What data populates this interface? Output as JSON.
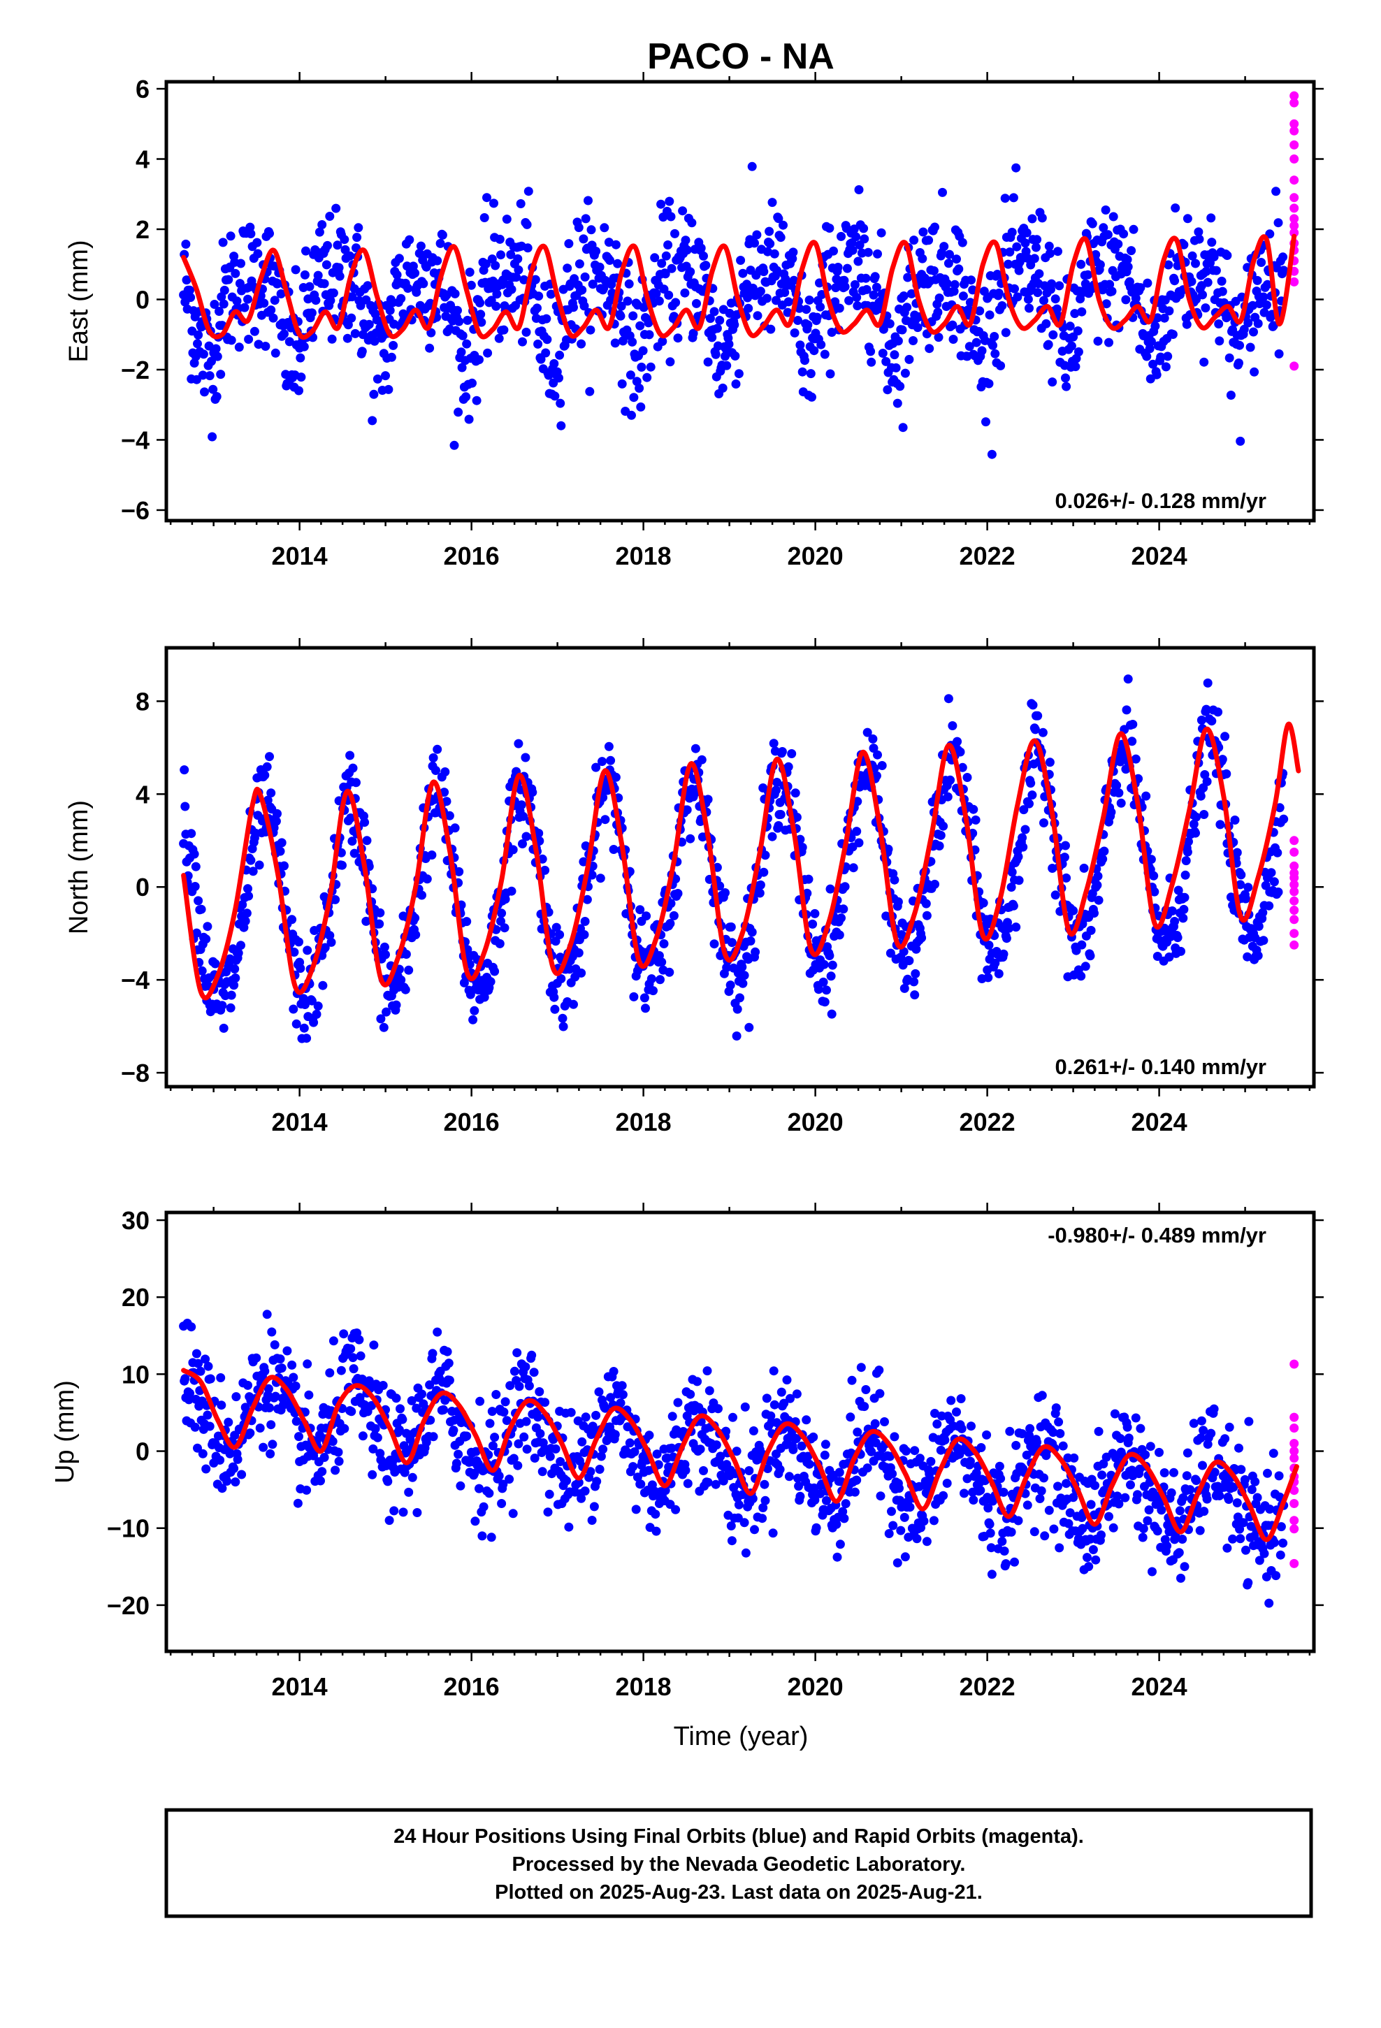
{
  "chart_data": [
    {
      "type": "scatter",
      "title": "PACO - NA",
      "ylabel": "East (mm)",
      "xlabel": "",
      "xlim": [
        2012.45,
        2025.8
      ],
      "ylim": [
        -6.3,
        6.2
      ],
      "x_ticks": [
        2014,
        2016,
        2018,
        2020,
        2022,
        2024
      ],
      "y_ticks": [
        -6,
        -4,
        -2,
        0,
        2,
        4,
        6
      ],
      "grid": false,
      "rate_label": "0.026+/- 0.128 mm/yr",
      "rate_position": "bottom-right",
      "series": [
        {
          "name": "Final Orbits",
          "color": "#0000ff",
          "kind": "points",
          "model": {
            "start": 2012.65,
            "end": 2025.45,
            "step": 0.009,
            "offset": 0.0,
            "trend": 0.026,
            "annual_sin": 0.45,
            "annual_cos": -0.95,
            "semi_sin": 0.35,
            "semi_cos": -0.2,
            "noise_sd": 0.95,
            "mean_year": 2019.0
          }
        },
        {
          "name": "Rapid Orbits",
          "color": "#ff00ff",
          "kind": "points",
          "x": [
            2025.57,
            2025.57,
            2025.57,
            2025.57,
            2025.57,
            2025.57,
            2025.57,
            2025.57,
            2025.57,
            2025.57,
            2025.57,
            2025.57,
            2025.57,
            2025.57,
            2025.57,
            2025.57,
            2025.57,
            2025.57
          ],
          "y": [
            5.8,
            5.6,
            5.0,
            4.8,
            4.4,
            4.0,
            3.4,
            2.9,
            2.6,
            2.3,
            2.1,
            1.9,
            1.6,
            1.4,
            1.1,
            0.8,
            0.5,
            -1.9
          ]
        },
        {
          "name": "Model fit",
          "color": "#ff0000",
          "kind": "line",
          "x": [
            2012.65,
            2012.8,
            2012.95,
            2013.1,
            2013.25,
            2013.4,
            2013.55,
            2013.7,
            2013.85,
            2014.0,
            2014.15,
            2014.3,
            2014.45,
            2014.6,
            2014.75,
            2014.9,
            2015.05,
            2015.2,
            2015.35,
            2015.5,
            2015.65,
            2015.8,
            2015.95,
            2016.1,
            2016.25,
            2016.4,
            2016.55,
            2016.7,
            2016.85,
            2017.0,
            2017.15,
            2017.3,
            2017.45,
            2017.6,
            2017.75,
            2017.9,
            2018.05,
            2018.2,
            2018.35,
            2018.5,
            2018.65,
            2018.8,
            2018.95,
            2019.1,
            2019.25,
            2019.4,
            2019.55,
            2019.7,
            2019.85,
            2020.0,
            2020.15,
            2020.3,
            2020.45,
            2020.6,
            2020.75,
            2020.9,
            2021.05,
            2021.2,
            2021.35,
            2021.5,
            2021.65,
            2021.8,
            2021.95,
            2022.1,
            2022.25,
            2022.4,
            2022.55,
            2022.7,
            2022.85,
            2023.0,
            2023.15,
            2023.3,
            2023.45,
            2023.6,
            2023.75,
            2023.9,
            2024.05,
            2024.2,
            2024.35,
            2024.5,
            2024.65,
            2024.8,
            2024.95,
            2025.1,
            2025.25,
            2025.4,
            2025.57
          ],
          "y": [
            1.2,
            0.3,
            -0.9,
            -1.0,
            -0.35,
            -0.6,
            0.6,
            1.4,
            0.2,
            -1.0,
            -0.9,
            -0.35,
            -0.8,
            0.7,
            1.4,
            0.1,
            -1.0,
            -0.85,
            -0.3,
            -0.8,
            0.7,
            1.5,
            0.2,
            -1.0,
            -0.85,
            -0.35,
            -0.8,
            0.8,
            1.5,
            0.1,
            -1.0,
            -0.8,
            -0.3,
            -0.8,
            0.8,
            1.5,
            0.0,
            -1.0,
            -0.8,
            -0.3,
            -0.8,
            0.8,
            1.5,
            0.0,
            -1.0,
            -0.75,
            -0.3,
            -0.7,
            0.9,
            1.6,
            0.0,
            -0.9,
            -0.7,
            -0.3,
            -0.7,
            0.9,
            1.6,
            0.0,
            -0.9,
            -0.7,
            -0.2,
            -0.7,
            1.0,
            1.6,
            0.0,
            -0.8,
            -0.6,
            -0.2,
            -0.7,
            1.0,
            1.7,
            0.0,
            -0.8,
            -0.6,
            -0.2,
            -0.6,
            1.1,
            1.7,
            0.0,
            -0.8,
            -0.5,
            -0.2,
            -0.6,
            1.1,
            1.7,
            -0.7,
            1.8
          ]
        }
      ]
    },
    {
      "type": "scatter",
      "ylabel": "North (mm)",
      "xlabel": "",
      "xlim": [
        2012.45,
        2025.8
      ],
      "ylim": [
        -8.6,
        10.3
      ],
      "x_ticks": [
        2014,
        2016,
        2018,
        2020,
        2022,
        2024
      ],
      "y_ticks": [
        -8,
        -4,
        0,
        4,
        8
      ],
      "grid": false,
      "rate_label": "0.261+/- 0.140 mm/yr",
      "rate_position": "bottom-right",
      "series": [
        {
          "name": "Final Orbits",
          "color": "#0000ff",
          "kind": "points",
          "model": {
            "start": 2012.65,
            "end": 2025.45,
            "step": 0.009,
            "offset": 0.4,
            "trend": 0.261,
            "annual_sin": -2.2,
            "annual_cos": -3.5,
            "semi_sin": 0.3,
            "semi_cos": 0.0,
            "noise_sd": 1.05,
            "mean_year": 2019.0
          }
        },
        {
          "name": "Rapid Orbits",
          "color": "#ff00ff",
          "kind": "points",
          "x": [
            2025.57,
            2025.57,
            2025.57,
            2025.57,
            2025.57,
            2025.57,
            2025.57,
            2025.57,
            2025.57,
            2025.57,
            2025.57,
            2025.57
          ],
          "y": [
            2.0,
            1.5,
            0.9,
            0.6,
            0.4,
            0.1,
            -0.2,
            -0.6,
            -1.0,
            -1.4,
            -2.0,
            -2.5
          ]
        },
        {
          "name": "Model fit",
          "color": "#ff0000",
          "kind": "line",
          "x": [
            2012.65,
            2012.85,
            2013.05,
            2013.25,
            2013.45,
            2013.55,
            2013.75,
            2013.95,
            2014.15,
            2014.35,
            2014.55,
            2014.75,
            2014.95,
            2015.15,
            2015.35,
            2015.55,
            2015.75,
            2015.95,
            2016.15,
            2016.35,
            2016.55,
            2016.75,
            2016.95,
            2017.15,
            2017.35,
            2017.55,
            2017.75,
            2017.95,
            2018.15,
            2018.35,
            2018.55,
            2018.75,
            2018.95,
            2019.15,
            2019.35,
            2019.55,
            2019.75,
            2019.95,
            2020.15,
            2020.35,
            2020.55,
            2020.75,
            2020.95,
            2021.15,
            2021.35,
            2021.55,
            2021.75,
            2021.95,
            2022.15,
            2022.35,
            2022.55,
            2022.75,
            2022.95,
            2023.15,
            2023.35,
            2023.55,
            2023.75,
            2023.95,
            2024.15,
            2024.35,
            2024.55,
            2024.75,
            2024.95,
            2025.15,
            2025.35,
            2025.5,
            2025.62
          ],
          "y": [
            0.5,
            -4.5,
            -3.8,
            -1.0,
            3.5,
            3.9,
            0.5,
            -4.3,
            -3.5,
            -0.5,
            4.1,
            1.0,
            -4.0,
            -3.0,
            0.0,
            4.5,
            1.5,
            -3.7,
            -2.8,
            0.3,
            4.8,
            1.6,
            -3.5,
            -2.5,
            0.8,
            5.0,
            1.8,
            -3.2,
            -2.2,
            1.0,
            5.3,
            2.2,
            -2.9,
            -2.0,
            1.4,
            5.5,
            2.4,
            -2.7,
            -1.6,
            1.8,
            5.8,
            2.6,
            -2.4,
            -1.2,
            2.2,
            6.1,
            3.0,
            -2.1,
            -0.5,
            3.5,
            6.3,
            3.3,
            -1.9,
            -0.2,
            3.0,
            6.6,
            3.6,
            -1.6,
            0.1,
            3.3,
            6.8,
            3.9,
            -1.3,
            0.4,
            3.6,
            7.0,
            5.0
          ]
        }
      ]
    },
    {
      "type": "scatter",
      "ylabel": "Up (mm)",
      "xlabel": "Time (year)",
      "xlim": [
        2012.45,
        2025.8
      ],
      "ylim": [
        -26.0,
        31.0
      ],
      "x_ticks": [
        2014,
        2016,
        2018,
        2020,
        2022,
        2024
      ],
      "y_ticks": [
        -20,
        -10,
        0,
        10,
        20,
        30
      ],
      "grid": false,
      "rate_label": "-0.980+/- 0.489 mm/yr",
      "rate_position": "top-right",
      "series": [
        {
          "name": "Final Orbits",
          "color": "#0000ff",
          "kind": "points",
          "model": {
            "start": 2012.65,
            "end": 2025.45,
            "step": 0.009,
            "offset": -0.6,
            "trend": -0.98,
            "annual_sin": -3.5,
            "annual_cos": -2.8,
            "semi_sin": 0.4,
            "semi_cos": 0.3,
            "noise_sd": 3.8,
            "mean_year": 2019.0
          }
        },
        {
          "name": "Rapid Orbits",
          "color": "#ff00ff",
          "kind": "points",
          "x": [
            2025.57,
            2025.57,
            2025.57,
            2025.57,
            2025.57,
            2025.57,
            2025.57,
            2025.57,
            2025.57,
            2025.57,
            2025.57,
            2025.57,
            2025.57,
            2025.57
          ],
          "y": [
            11.3,
            4.4,
            3.0,
            1.0,
            0.0,
            -0.9,
            -2.2,
            -3.3,
            -4.0,
            -5.1,
            -6.8,
            -9.0,
            -10.1,
            -14.6
          ]
        },
        {
          "name": "Model fit",
          "color": "#ff0000",
          "kind": "line",
          "x": [
            2012.65,
            2012.85,
            2013.05,
            2013.25,
            2013.45,
            2013.65,
            2013.85,
            2014.05,
            2014.25,
            2014.45,
            2014.65,
            2014.85,
            2015.05,
            2015.25,
            2015.45,
            2015.65,
            2015.85,
            2016.05,
            2016.25,
            2016.45,
            2016.65,
            2016.85,
            2017.05,
            2017.25,
            2017.45,
            2017.65,
            2017.85,
            2018.05,
            2018.25,
            2018.45,
            2018.65,
            2018.85,
            2019.05,
            2019.25,
            2019.45,
            2019.65,
            2019.85,
            2020.05,
            2020.25,
            2020.45,
            2020.65,
            2020.85,
            2021.05,
            2021.25,
            2021.45,
            2021.65,
            2021.85,
            2022.05,
            2022.25,
            2022.45,
            2022.65,
            2022.85,
            2023.05,
            2023.25,
            2023.45,
            2023.65,
            2023.85,
            2024.05,
            2024.25,
            2024.45,
            2024.65,
            2024.85,
            2025.05,
            2025.25,
            2025.45,
            2025.6
          ],
          "y": [
            10.5,
            9.0,
            4.0,
            0.5,
            5.5,
            9.5,
            8.0,
            4.0,
            0.0,
            6.0,
            8.5,
            7.0,
            3.0,
            -1.5,
            4.0,
            7.5,
            6.0,
            2.0,
            -2.5,
            3.0,
            6.5,
            5.0,
            1.0,
            -3.5,
            1.5,
            5.5,
            4.0,
            0.0,
            -4.5,
            0.5,
            4.5,
            3.0,
            -1.0,
            -5.5,
            0.0,
            3.5,
            2.0,
            -2.0,
            -6.5,
            -1.0,
            2.5,
            1.0,
            -3.0,
            -7.5,
            -2.5,
            1.5,
            0.0,
            -4.0,
            -8.5,
            -3.5,
            0.5,
            -1.0,
            -5.0,
            -9.5,
            -4.5,
            -0.5,
            -2.0,
            -6.0,
            -10.5,
            -5.5,
            -1.5,
            -3.0,
            -7.0,
            -11.5,
            -6.5,
            -2.0
          ]
        }
      ]
    }
  ],
  "footer": {
    "line1": "24 Hour Positions Using Final Orbits (blue) and Rapid Orbits (magenta).",
    "line2": "Processed by the Nevada Geodetic Laboratory.",
    "line3": "Plotted on 2025-Aug-23. Last data on 2025-Aug-21."
  }
}
